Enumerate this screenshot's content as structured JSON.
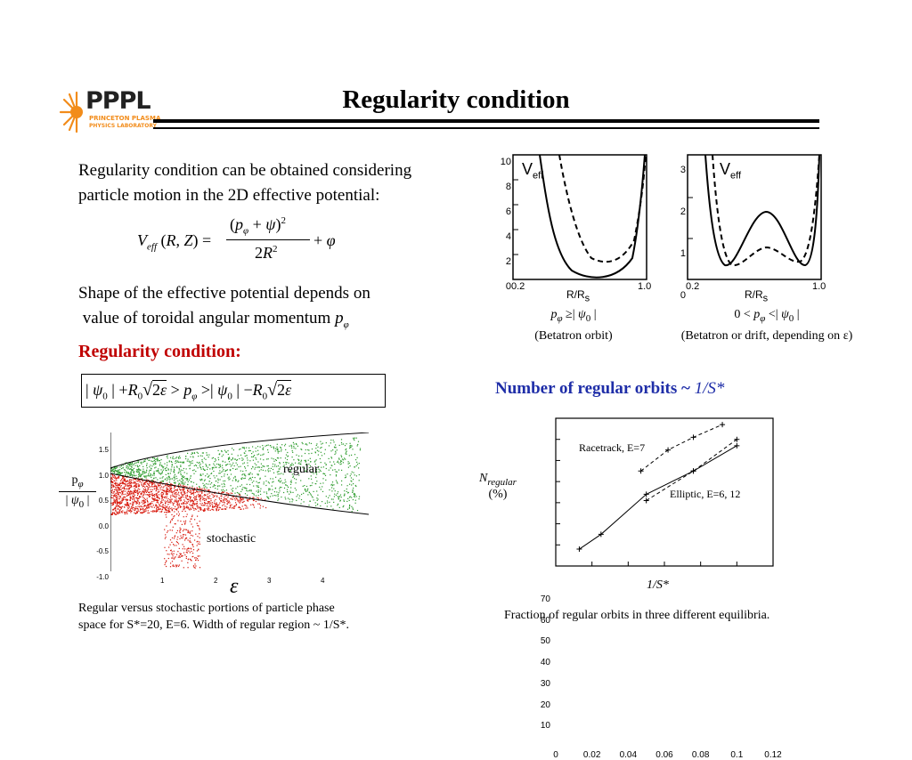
{
  "logo": {
    "letters": "PPPL",
    "line1": "PRINCETON PLASMA",
    "line2": "PHYSICS LABORATORY",
    "color": "#f28c1a"
  },
  "title": "Regularity condition",
  "intro": [
    "Regularity condition can be obtained considering",
    "particle motion in the 2D effective potential:"
  ],
  "shape_text": [
    "Shape of the effective potential depends on",
    " value of toroidal angular momentum "
  ],
  "regularity_heading": "Regularity condition:",
  "regularity_heading_color": "#c00000",
  "veff_plots": {
    "left": {
      "label": "V",
      "label_sub": "eff",
      "xlabel": "R/R",
      "xlabel_sub": "s",
      "yticks": [
        "10",
        "8",
        "6",
        "4",
        "2",
        "0"
      ],
      "xticks": [
        "0.2",
        "1.0"
      ],
      "caption_line2": "(Betatron orbit)"
    },
    "right": {
      "label": "V",
      "label_sub": "eff",
      "xlabel": "R/R",
      "xlabel_sub": "s",
      "yticks": [
        "3",
        "2",
        "1",
        "0"
      ],
      "xticks": [
        "0.2",
        "1.0"
      ],
      "caption_line2_prefix": "(Betatron or drift, depending on ",
      "caption_line2_symbol": "ε",
      "caption_line2_suffix": ")"
    }
  },
  "scatter": {
    "yticks": [
      "1.5",
      "1.0",
      "0.5",
      "0.0",
      "-0.5",
      "-1.0"
    ],
    "xticks": [
      "1",
      "2",
      "3",
      "4"
    ],
    "regular_label": "regular",
    "stochastic_label": "stochastic",
    "xlabel": "ε",
    "regular_color": "#2e9c2e",
    "stochastic_color": "#d81a0e",
    "caption": [
      "Regular versus stochastic portions of  particle phase",
      "space for S*=20, E=6. Width of regular region ~ 1/S*."
    ]
  },
  "orbits_heading": "Number of regular orbits ~ ",
  "orbits_heading_math": "1/S*",
  "orbits_heading_color": "#1f2ea8",
  "orbits_chart": {
    "ylabel_main": "N",
    "ylabel_sub": "regular",
    "ylabel_unit": "(%)",
    "xlabel": "1/S*",
    "yticks": [
      "70",
      "60",
      "50",
      "40",
      "30",
      "20",
      "10"
    ],
    "xticks": [
      "0",
      "0.02",
      "0.04",
      "0.06",
      "0.08",
      "0.1",
      "0.12"
    ],
    "racetrack_label": "Racetrack, E=7",
    "elliptic_label": "Elliptic, E=6, 12",
    "caption": "Fraction of regular orbits in three different equilibria."
  },
  "chart_data": {
    "type": "line",
    "title": "Number of regular orbits ~ 1/S*",
    "xlabel": "1/S*",
    "ylabel": "N_regular (%)",
    "xlim": [
      0,
      0.12
    ],
    "ylim": [
      0,
      70
    ],
    "series": [
      {
        "name": "Racetrack, E=7",
        "style": "dashed",
        "x": [
          0.047,
          0.062,
          0.076,
          0.092
        ],
        "y": [
          45,
          55,
          61,
          67
        ]
      },
      {
        "name": "Elliptic, E=6, 12",
        "style": "dashed",
        "x": [
          0.05,
          0.076,
          0.1
        ],
        "y": [
          31,
          45,
          60
        ]
      },
      {
        "name": "Elliptic, E=6, 12",
        "style": "solid",
        "x": [
          0.013,
          0.025,
          0.05,
          0.076,
          0.1
        ],
        "y": [
          8,
          15,
          34,
          45,
          57
        ]
      }
    ]
  }
}
